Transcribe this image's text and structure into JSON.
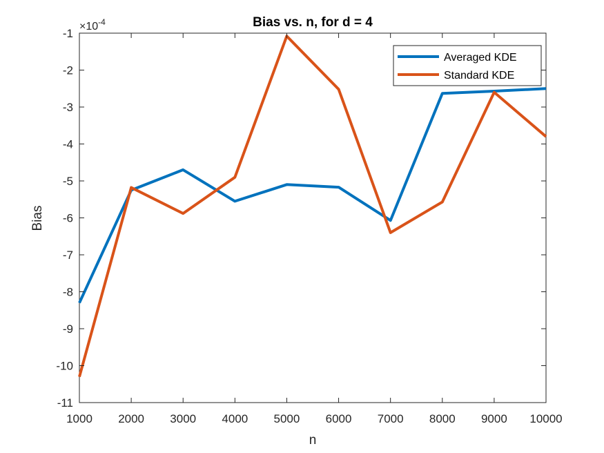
{
  "chart_data": {
    "type": "line",
    "title": "Bias vs. n, for d = 4",
    "xlabel": "n",
    "ylabel": "Bias",
    "y_exponent_base": "×10",
    "y_exponent_power": "-4",
    "xlim": [
      1000,
      10000
    ],
    "ylim": [
      -11,
      -1
    ],
    "x_ticks": [
      1000,
      2000,
      3000,
      4000,
      5000,
      6000,
      7000,
      8000,
      9000,
      10000
    ],
    "y_ticks": [
      -1,
      -2,
      -3,
      -4,
      -5,
      -6,
      -7,
      -8,
      -9,
      -10,
      -11
    ],
    "grid": false,
    "legend_position": "top-right",
    "x": [
      1000,
      2000,
      3000,
      4000,
      5000,
      6000,
      7000,
      8000,
      9000,
      10000
    ],
    "series": [
      {
        "name": "Averaged KDE",
        "color": "#0072BD",
        "values": [
          -8.3,
          -5.25,
          -4.7,
          -5.55,
          -5.1,
          -5.17,
          -6.07,
          -2.63,
          -2.57,
          -2.5
        ]
      },
      {
        "name": "Standard KDE",
        "color": "#D95319",
        "values": [
          -10.3,
          -5.18,
          -5.88,
          -4.9,
          -1.08,
          -2.52,
          -6.4,
          -5.57,
          -2.6,
          -3.8
        ]
      }
    ]
  }
}
